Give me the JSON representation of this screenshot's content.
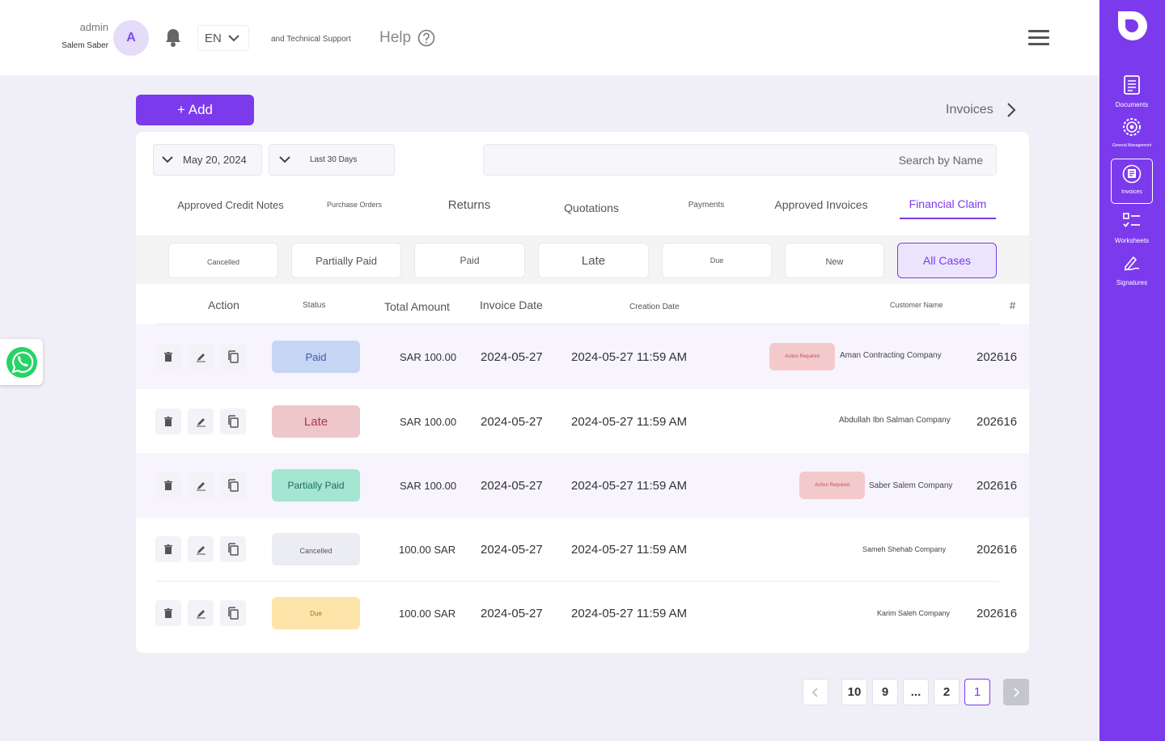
{
  "header": {
    "user_role": "admin",
    "user_name": "Salem Saber",
    "avatar_letter": "A",
    "language": "EN",
    "tech_support": "and Technical Support",
    "help": "Help"
  },
  "sidebar": {
    "items": [
      {
        "label": "Documents",
        "icon": "document-icon"
      },
      {
        "label": "General Management",
        "icon": "gear-icon"
      },
      {
        "label": "Invoices",
        "icon": "invoice-icon"
      },
      {
        "label": "Worksheets",
        "icon": "checklist-icon"
      },
      {
        "label": "Signatures",
        "icon": "signature-icon"
      }
    ]
  },
  "toolbar": {
    "add_label": "+ Add",
    "breadcrumb": "Invoices"
  },
  "filters": {
    "date": "May 20, 2024",
    "range": "Last 30 Days",
    "search_placeholder": "Search by Name"
  },
  "tabs": [
    "Approved Credit Notes",
    "Purchase Orders",
    "Returns",
    "Quotations",
    "Payments",
    "Approved Invoices",
    "Financial Claim"
  ],
  "active_tab": "Financial Claim",
  "status_filters": [
    "Cancelled",
    "Partially Paid",
    "Paid",
    "Late",
    "Due",
    "New",
    "All Cases"
  ],
  "active_status_filter": "All Cases",
  "table": {
    "headers": {
      "action": "Action",
      "status": "Status",
      "total": "Total Amount",
      "invoice_date": "Invoice Date",
      "creation_date": "Creation Date",
      "customer": "Customer Name",
      "number": "#"
    },
    "rows": [
      {
        "status": "Paid",
        "total": "SAR 100.00",
        "invoice_date": "2024-05-27",
        "creation_date": "2024-05-27 11:59 AM",
        "action_required": "Action Required",
        "customer": "Aman Contracting Company",
        "number": "202616"
      },
      {
        "status": "Late",
        "total": "SAR 100.00",
        "invoice_date": "2024-05-27",
        "creation_date": "2024-05-27 11:59 AM",
        "action_required": "",
        "customer": "Abdullah Ibn Salman Company",
        "number": "202616"
      },
      {
        "status": "Partially Paid",
        "total": "SAR 100.00",
        "invoice_date": "2024-05-27",
        "creation_date": "2024-05-27 11:59 AM",
        "action_required": "Action Required",
        "customer": "Saber Salem Company",
        "number": "202616"
      },
      {
        "status": "Cancelled",
        "total": "100.00 SAR",
        "invoice_date": "2024-05-27",
        "creation_date": "2024-05-27 11:59 AM",
        "action_required": "",
        "customer": "Sameh Shehab Company",
        "number": "202616"
      },
      {
        "status": "Due",
        "total": "100.00 SAR",
        "invoice_date": "2024-05-27",
        "creation_date": "2024-05-27 11:59 AM",
        "action_required": "",
        "customer": "Karim Saleh Company",
        "number": "202616"
      }
    ]
  },
  "pagination": {
    "pages": [
      "10",
      "9",
      "...",
      "2",
      "1"
    ],
    "current": "1"
  },
  "colors": {
    "accent": "#7c3aed",
    "paid_bg": "#c7d5f4",
    "late_bg": "#eec7cb",
    "partially_paid_bg": "#a4e6d1",
    "cancelled_bg": "#ececf4",
    "due_bg": "#fde4a8"
  }
}
